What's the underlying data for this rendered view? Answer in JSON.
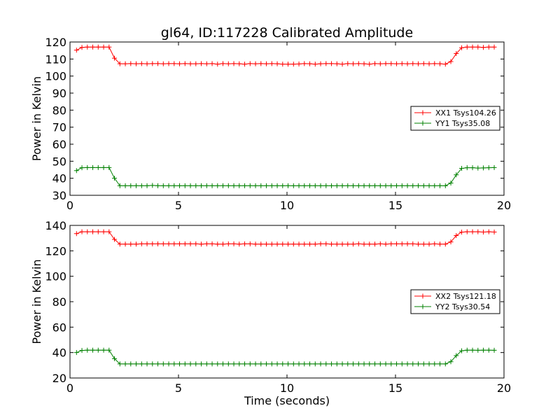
{
  "title": "gl64, ID:117228 Calibrated Amplitude",
  "colors": {
    "red": "#ff0000",
    "green": "#008000"
  },
  "chart_data": [
    {
      "type": "line",
      "title": "gl64, ID:117228 Calibrated Amplitude",
      "xlabel": "",
      "ylabel": "Power in Kelvin",
      "xlim": [
        0,
        20
      ],
      "ylim": [
        30,
        120
      ],
      "xticks": [
        0,
        5,
        10,
        15,
        20
      ],
      "yticks": [
        30,
        40,
        50,
        60,
        70,
        80,
        90,
        100,
        110,
        120
      ],
      "grid": false,
      "legend_position": "center-right",
      "series": [
        {
          "name": "XX1 Tsys104.26",
          "color": "#ff0000",
          "x": [
            0.3,
            0.55,
            0.8,
            1.05,
            1.3,
            1.55,
            1.8,
            2.05,
            2.3,
            2.55,
            2.8,
            3.05,
            3.3,
            3.55,
            3.8,
            4.05,
            4.3,
            4.55,
            4.8,
            5.05,
            5.3,
            5.55,
            5.8,
            6.05,
            6.3,
            6.55,
            6.8,
            7.05,
            7.3,
            7.55,
            7.8,
            8.05,
            8.3,
            8.55,
            8.8,
            9.05,
            9.3,
            9.55,
            9.8,
            10.05,
            10.3,
            10.55,
            10.8,
            11.05,
            11.3,
            11.55,
            11.8,
            12.05,
            12.3,
            12.55,
            12.8,
            13.05,
            13.3,
            13.55,
            13.8,
            14.05,
            14.3,
            14.55,
            14.8,
            15.05,
            15.3,
            15.55,
            15.8,
            16.05,
            16.3,
            16.55,
            16.8,
            17.05,
            17.3,
            17.55,
            17.8,
            18.05,
            18.3,
            18.55,
            18.8,
            19.05,
            19.3,
            19.55
          ],
          "y": [
            115.2,
            116.8,
            117.0,
            117.0,
            117.0,
            117.0,
            117.0,
            110.5,
            107.2,
            107.2,
            107.3,
            107.2,
            107.3,
            107.2,
            107.3,
            107.3,
            107.2,
            107.3,
            107.3,
            107.2,
            107.3,
            107.2,
            107.2,
            107.3,
            107.2,
            107.3,
            107.0,
            107.3,
            107.2,
            107.3,
            107.2,
            107.0,
            107.3,
            107.2,
            107.3,
            107.2,
            107.3,
            107.2,
            107.0,
            107.0,
            107.0,
            107.1,
            107.3,
            107.2,
            107.0,
            107.2,
            107.3,
            107.3,
            107.2,
            107.0,
            107.3,
            107.2,
            107.3,
            107.2,
            107.0,
            107.3,
            107.2,
            107.3,
            107.3,
            107.2,
            107.3,
            107.2,
            107.3,
            107.2,
            107.3,
            107.2,
            107.3,
            107.2,
            107.0,
            108.5,
            113.2,
            116.6,
            117.0,
            117.0,
            117.0,
            116.8,
            117.0,
            117.0
          ]
        },
        {
          "name": "YY1 Tsys35.08",
          "color": "#008000",
          "x": [
            0.3,
            0.55,
            0.8,
            1.05,
            1.3,
            1.55,
            1.8,
            2.05,
            2.3,
            2.55,
            2.8,
            3.05,
            3.3,
            3.55,
            3.8,
            4.05,
            4.3,
            4.55,
            4.8,
            5.05,
            5.3,
            5.55,
            5.8,
            6.05,
            6.3,
            6.55,
            6.8,
            7.05,
            7.3,
            7.55,
            7.8,
            8.05,
            8.3,
            8.55,
            8.8,
            9.05,
            9.3,
            9.55,
            9.8,
            10.05,
            10.3,
            10.55,
            10.8,
            11.05,
            11.3,
            11.55,
            11.8,
            12.05,
            12.3,
            12.55,
            12.8,
            13.05,
            13.3,
            13.55,
            13.8,
            14.05,
            14.3,
            14.55,
            14.8,
            15.05,
            15.3,
            15.55,
            15.8,
            16.05,
            16.3,
            16.55,
            16.8,
            17.05,
            17.3,
            17.55,
            17.8,
            18.05,
            18.3,
            18.55,
            18.8,
            19.05,
            19.3,
            19.55
          ],
          "y": [
            44.5,
            46.2,
            46.3,
            46.3,
            46.3,
            46.3,
            46.3,
            40.0,
            35.6,
            35.6,
            35.6,
            35.6,
            35.6,
            35.6,
            35.8,
            35.6,
            35.6,
            35.6,
            35.6,
            35.6,
            35.6,
            35.6,
            35.6,
            35.6,
            35.6,
            35.6,
            35.6,
            35.6,
            35.6,
            35.6,
            35.6,
            35.6,
            35.6,
            35.6,
            35.6,
            35.6,
            35.6,
            35.6,
            35.6,
            35.6,
            35.6,
            35.6,
            35.6,
            35.6,
            35.6,
            35.6,
            35.6,
            35.6,
            35.6,
            35.6,
            35.6,
            35.6,
            35.6,
            35.6,
            35.6,
            35.6,
            35.6,
            35.6,
            35.6,
            35.6,
            35.6,
            35.6,
            35.6,
            35.6,
            35.6,
            35.6,
            35.6,
            35.6,
            35.6,
            37.2,
            42.0,
            45.8,
            46.2,
            46.2,
            46.0,
            46.1,
            46.2,
            46.3
          ]
        }
      ]
    },
    {
      "type": "line",
      "title": "",
      "xlabel": "Time (seconds)",
      "ylabel": "Power in Kelvin",
      "xlim": [
        0,
        20
      ],
      "ylim": [
        20,
        140
      ],
      "xticks": [
        0,
        5,
        10,
        15,
        20
      ],
      "yticks": [
        20,
        40,
        60,
        80,
        100,
        120,
        140
      ],
      "grid": false,
      "legend_position": "center-right",
      "series": [
        {
          "name": "XX2 Tsys121.18",
          "color": "#ff0000",
          "x": [
            0.3,
            0.55,
            0.8,
            1.05,
            1.3,
            1.55,
            1.8,
            2.05,
            2.3,
            2.55,
            2.8,
            3.05,
            3.3,
            3.55,
            3.8,
            4.05,
            4.3,
            4.55,
            4.8,
            5.05,
            5.3,
            5.55,
            5.8,
            6.05,
            6.3,
            6.55,
            6.8,
            7.05,
            7.3,
            7.55,
            7.8,
            8.05,
            8.3,
            8.55,
            8.8,
            9.05,
            9.3,
            9.55,
            9.8,
            10.05,
            10.3,
            10.55,
            10.8,
            11.05,
            11.3,
            11.55,
            11.8,
            12.05,
            12.3,
            12.55,
            12.8,
            13.05,
            13.3,
            13.55,
            13.8,
            14.05,
            14.3,
            14.55,
            14.8,
            15.05,
            15.3,
            15.55,
            15.8,
            16.05,
            16.3,
            16.55,
            16.8,
            17.05,
            17.3,
            17.55,
            17.8,
            18.05,
            18.3,
            18.55,
            18.8,
            19.05,
            19.3,
            19.55
          ],
          "y": [
            133.5,
            135.0,
            135.0,
            135.0,
            135.0,
            135.0,
            135.0,
            129.0,
            125.3,
            125.3,
            125.3,
            125.3,
            125.5,
            125.5,
            125.5,
            125.5,
            125.5,
            125.5,
            125.5,
            125.5,
            125.5,
            125.5,
            125.5,
            125.3,
            125.5,
            125.5,
            125.3,
            125.3,
            125.5,
            125.5,
            125.3,
            125.5,
            125.5,
            125.3,
            125.3,
            125.3,
            125.3,
            125.3,
            125.3,
            125.3,
            125.3,
            125.3,
            125.3,
            125.3,
            125.3,
            125.5,
            125.5,
            125.3,
            125.3,
            125.3,
            125.3,
            125.3,
            125.5,
            125.3,
            125.3,
            125.3,
            125.5,
            125.3,
            125.5,
            125.5,
            125.5,
            125.5,
            125.5,
            125.3,
            125.3,
            125.3,
            125.5,
            125.3,
            125.3,
            127.0,
            132.0,
            134.7,
            135.0,
            135.0,
            135.0,
            134.8,
            135.0,
            134.8
          ]
        },
        {
          "name": "YY2 Tsys30.54",
          "color": "#008000",
          "x": [
            0.3,
            0.55,
            0.8,
            1.05,
            1.3,
            1.55,
            1.8,
            2.05,
            2.3,
            2.55,
            2.8,
            3.05,
            3.3,
            3.55,
            3.8,
            4.05,
            4.3,
            4.55,
            4.8,
            5.05,
            5.3,
            5.55,
            5.8,
            6.05,
            6.3,
            6.55,
            6.8,
            7.05,
            7.3,
            7.55,
            7.8,
            8.05,
            8.3,
            8.55,
            8.8,
            9.05,
            9.3,
            9.55,
            9.8,
            10.05,
            10.3,
            10.55,
            10.8,
            11.05,
            11.3,
            11.55,
            11.8,
            12.05,
            12.3,
            12.55,
            12.8,
            13.05,
            13.3,
            13.55,
            13.8,
            14.05,
            14.3,
            14.55,
            14.8,
            15.05,
            15.3,
            15.55,
            15.8,
            16.05,
            16.3,
            16.55,
            16.8,
            17.05,
            17.3,
            17.55,
            17.8,
            18.05,
            18.3,
            18.55,
            18.8,
            19.05,
            19.3,
            19.55
          ],
          "y": [
            40.0,
            41.7,
            41.9,
            41.9,
            41.9,
            41.9,
            41.9,
            35.2,
            31.1,
            31.1,
            31.1,
            31.1,
            31.1,
            31.1,
            31.1,
            31.1,
            31.1,
            31.1,
            31.1,
            31.1,
            31.1,
            31.1,
            31.1,
            31.1,
            31.1,
            31.1,
            31.1,
            31.1,
            31.1,
            31.1,
            31.1,
            31.1,
            31.1,
            31.1,
            31.1,
            31.1,
            31.1,
            31.1,
            31.1,
            31.1,
            31.1,
            31.1,
            31.1,
            31.1,
            31.1,
            31.1,
            31.1,
            31.1,
            31.1,
            31.1,
            31.1,
            31.1,
            31.1,
            31.1,
            31.1,
            31.1,
            31.1,
            31.1,
            31.1,
            31.1,
            31.1,
            31.1,
            31.1,
            31.1,
            31.1,
            31.1,
            31.1,
            31.1,
            31.1,
            32.8,
            37.6,
            41.4,
            41.9,
            41.9,
            41.8,
            41.9,
            41.9,
            41.8
          ]
        }
      ]
    }
  ]
}
